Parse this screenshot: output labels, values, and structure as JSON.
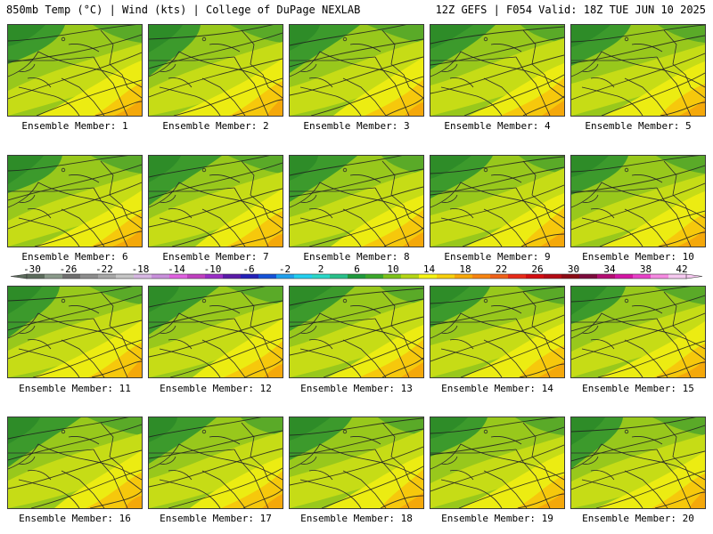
{
  "header": {
    "left": "850mb Temp (°C) | Wind (kts) | College of DuPage NEXLAB",
    "right": "12Z GEFS | F054 Valid: 18Z TUE JUN 10 2025"
  },
  "members": [
    {
      "label": "Ensemble Member: 1"
    },
    {
      "label": "Ensemble Member: 2"
    },
    {
      "label": "Ensemble Member: 3"
    },
    {
      "label": "Ensemble Member: 4"
    },
    {
      "label": "Ensemble Member: 5"
    },
    {
      "label": "Ensemble Member: 6"
    },
    {
      "label": "Ensemble Member: 7"
    },
    {
      "label": "Ensemble Member: 8"
    },
    {
      "label": "Ensemble Member: 9"
    },
    {
      "label": "Ensemble Member: 10"
    },
    {
      "label": "Ensemble Member: 11"
    },
    {
      "label": "Ensemble Member: 12"
    },
    {
      "label": "Ensemble Member: 13"
    },
    {
      "label": "Ensemble Member: 14"
    },
    {
      "label": "Ensemble Member: 15"
    },
    {
      "label": "Ensemble Member: 16"
    },
    {
      "label": "Ensemble Member: 17"
    },
    {
      "label": "Ensemble Member: 18"
    },
    {
      "label": "Ensemble Member: 19"
    },
    {
      "label": "Ensemble Member: 20"
    }
  ],
  "colorbar": {
    "ticks": [
      "-30",
      "-26",
      "-22",
      "-18",
      "-14",
      "-10",
      "-6",
      "-2",
      "2",
      "6",
      "10",
      "14",
      "18",
      "22",
      "26",
      "30",
      "34",
      "38",
      "42"
    ],
    "colors": [
      "#5c6b5c",
      "#8a9a8a",
      "#6f6f6f",
      "#8d8d8d",
      "#a8a8a8",
      "#c6c6c6",
      "#d7b7e3",
      "#c990dc",
      "#e060e0",
      "#c040c0",
      "#9a2cc6",
      "#5a1aa8",
      "#2420b8",
      "#1452d8",
      "#1ea0ee",
      "#22d0f0",
      "#2ad8c8",
      "#28c08a",
      "#1e9a3c",
      "#3aa82a",
      "#7cc21a",
      "#b4d614",
      "#f6f412",
      "#f8d00c",
      "#f8a808",
      "#f88410",
      "#f06018",
      "#e82a18",
      "#d40c10",
      "#b40a14",
      "#8c0a14",
      "#7c0a3c",
      "#b40c72",
      "#d414a4",
      "#e840c8",
      "#f68ae2",
      "#f6c8f0"
    ]
  }
}
